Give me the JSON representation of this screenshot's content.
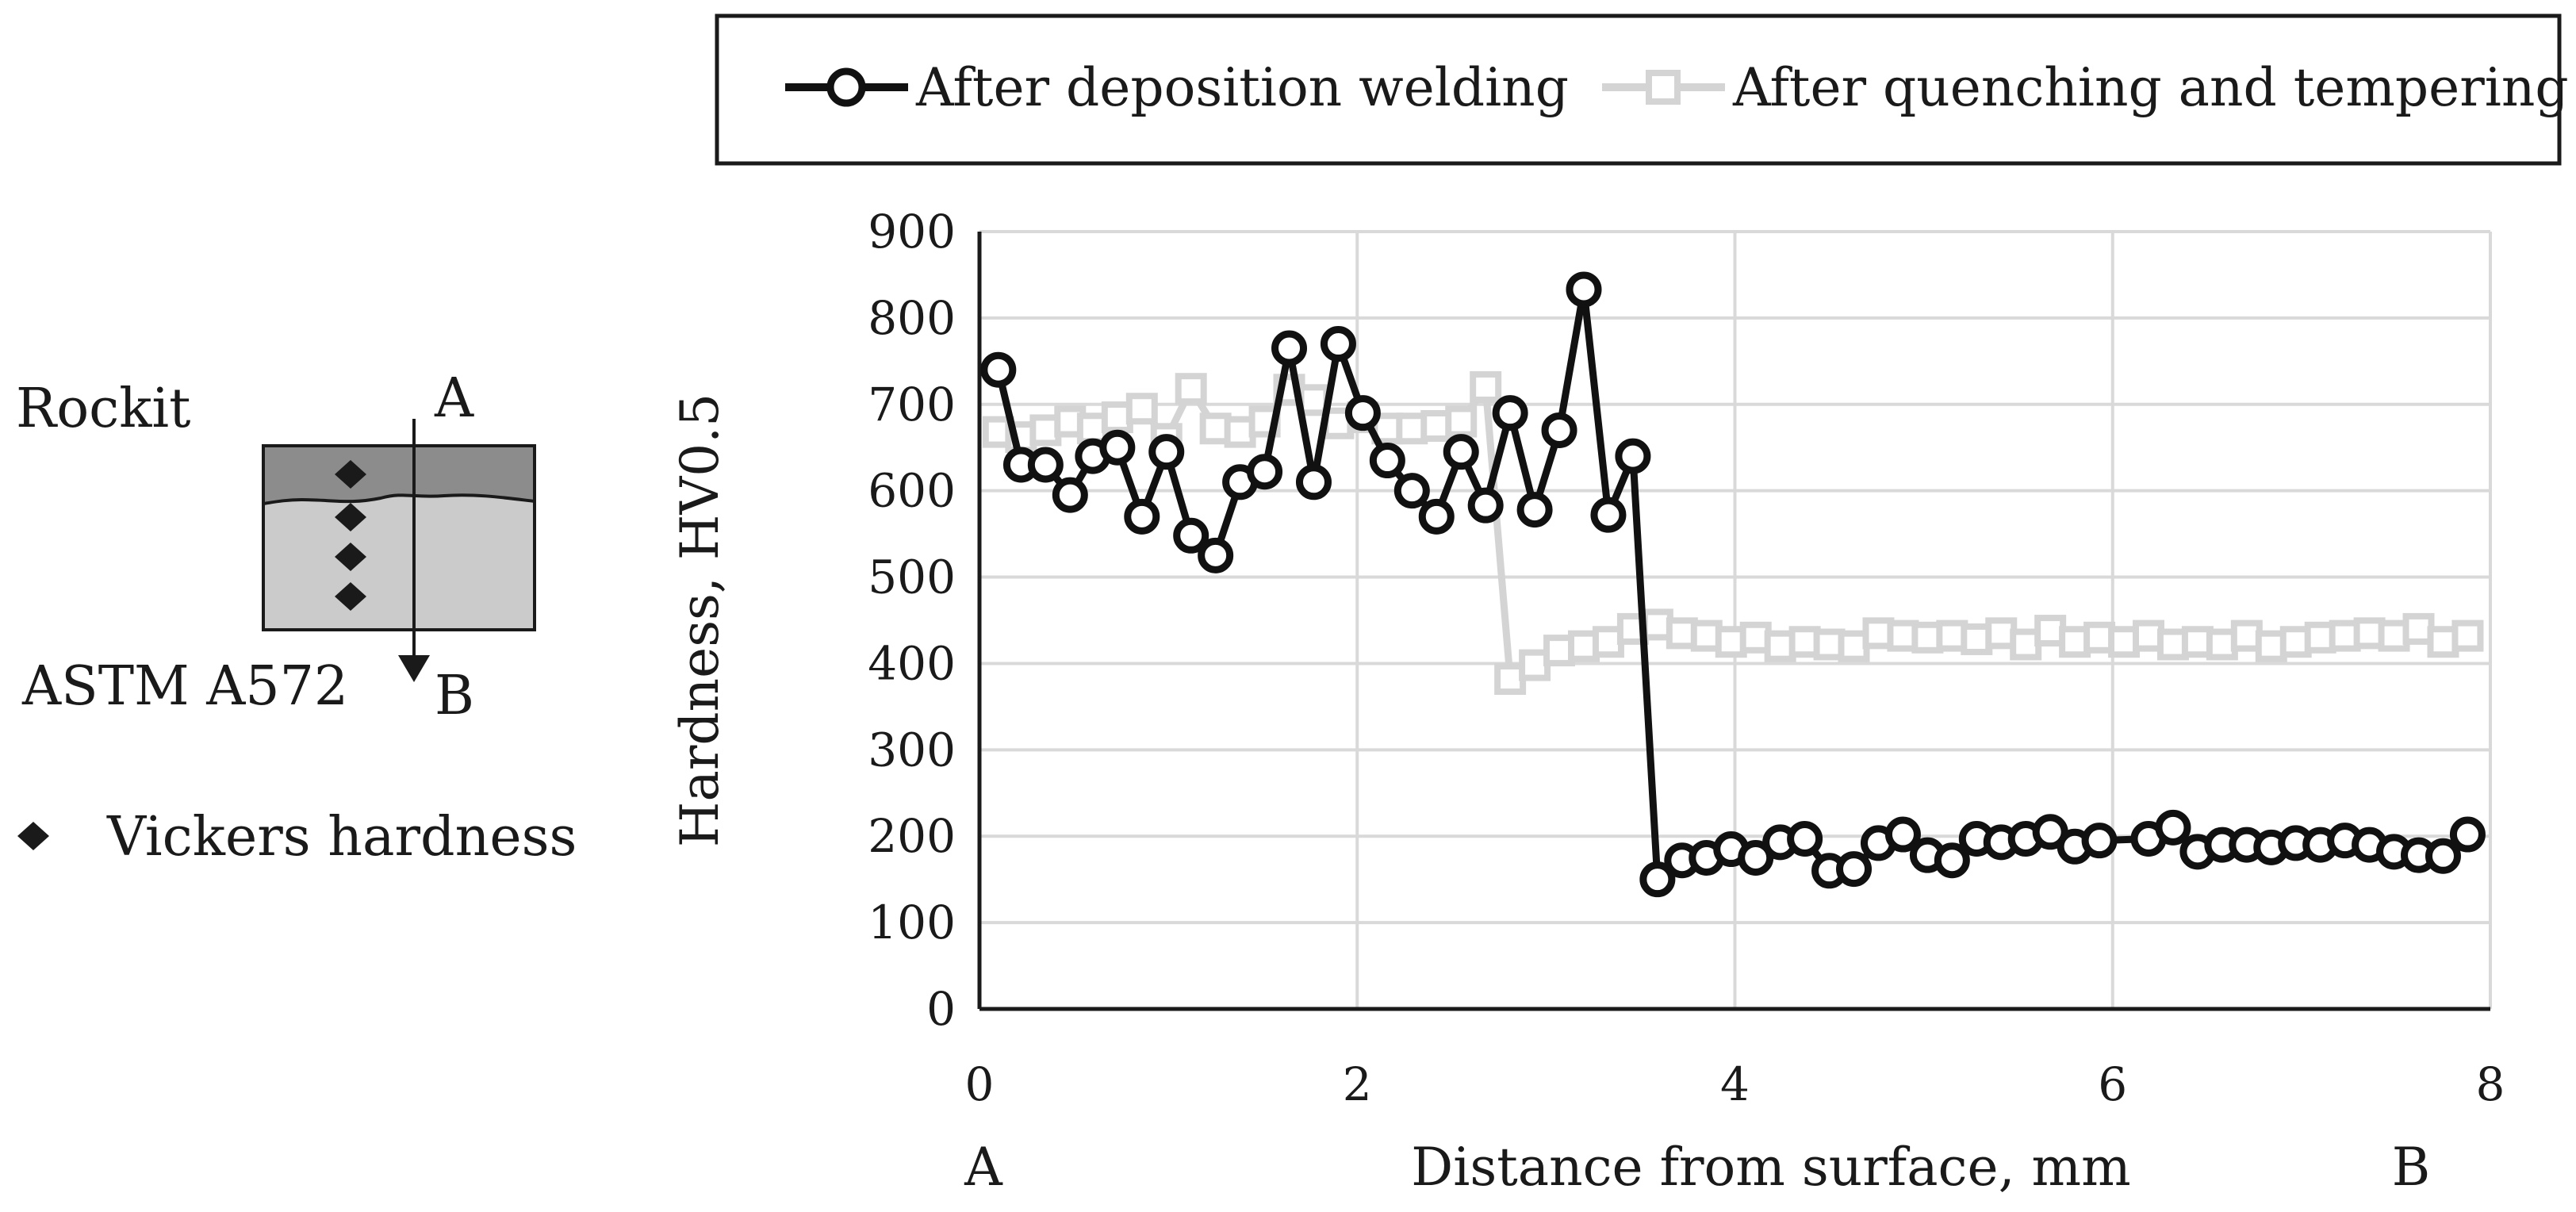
{
  "chart_data": {
    "type": "line",
    "title": "",
    "xlabel": "Distance from surface, mm",
    "ylabel": "Hardness, HV0.5",
    "xlim": [
      0,
      8
    ],
    "ylim": [
      0,
      900
    ],
    "xticks": [
      "0",
      "2",
      "4",
      "6",
      "8"
    ],
    "yticks": [
      "0",
      "100",
      "200",
      "300",
      "400",
      "500",
      "600",
      "700",
      "800",
      "900"
    ],
    "grid": true,
    "legend_position": "top",
    "x_endpoint_labels": {
      "start": "A",
      "end": "B"
    },
    "series": [
      {
        "name": "After deposition welding",
        "color": "#111111",
        "marker": "circle",
        "x": [
          0.1,
          0.22,
          0.35,
          0.48,
          0.6,
          0.73,
          0.86,
          0.99,
          1.12,
          1.25,
          1.38,
          1.51,
          1.64,
          1.77,
          1.9,
          2.03,
          2.16,
          2.29,
          2.42,
          2.55,
          2.68,
          2.81,
          2.94,
          3.07,
          3.2,
          3.33,
          3.46,
          3.59,
          3.72,
          3.85,
          3.98,
          4.11,
          4.24,
          4.37,
          4.5,
          4.63,
          4.76,
          4.89,
          5.02,
          5.15,
          5.28,
          5.41,
          5.54,
          5.67,
          5.8,
          5.93,
          6.06,
          6.19,
          6.32,
          6.45,
          6.58,
          6.71,
          6.84,
          6.97,
          7.1,
          7.23,
          7.36,
          7.49,
          7.62,
          7.75,
          7.88
        ],
        "values": [
          740,
          630,
          630,
          595,
          640,
          650,
          570,
          645,
          548,
          525,
          610,
          622,
          765,
          610,
          770,
          690,
          635,
          600,
          570,
          645,
          583,
          690,
          578,
          670,
          833,
          572,
          640,
          150,
          172,
          175,
          185,
          175,
          193,
          197,
          160,
          162,
          192,
          202,
          178,
          172,
          197,
          193,
          197,
          205,
          188,
          195,
          null,
          197,
          210,
          182,
          190,
          190,
          187,
          192,
          190,
          195,
          190,
          182,
          178,
          177,
          202
        ]
      },
      {
        "name": "After quenching and tempering",
        "color": "#d4d4d4",
        "marker": "square",
        "x": [
          0.1,
          0.22,
          0.35,
          0.48,
          0.6,
          0.73,
          0.86,
          0.99,
          1.12,
          1.25,
          1.38,
          1.51,
          1.64,
          1.77,
          1.9,
          2.03,
          2.16,
          2.29,
          2.42,
          2.55,
          2.68,
          2.81,
          2.94,
          3.07,
          3.2,
          3.33,
          3.46,
          3.59,
          3.72,
          3.85,
          3.98,
          4.11,
          4.24,
          4.37,
          4.5,
          4.63,
          4.76,
          4.89,
          5.02,
          5.15,
          5.28,
          5.41,
          5.54,
          5.67,
          5.8,
          5.93,
          6.06,
          6.19,
          6.32,
          6.45,
          6.58,
          6.71,
          6.84,
          6.97,
          7.1,
          7.23,
          7.36,
          7.49,
          7.62,
          7.75,
          7.88
        ],
        "values": [
          668,
          662,
          670,
          680,
          672,
          685,
          695,
          660,
          718,
          672,
          668,
          680,
          717,
          705,
          678,
          685,
          672,
          672,
          675,
          680,
          720,
          382,
          398,
          415,
          420,
          425,
          440,
          445,
          435,
          432,
          425,
          430,
          420,
          425,
          422,
          420,
          435,
          432,
          430,
          432,
          428,
          435,
          422,
          438,
          425,
          430,
          425,
          432,
          422,
          425,
          422,
          432,
          420,
          425,
          430,
          432,
          435,
          432,
          440,
          425,
          432
        ]
      }
    ]
  },
  "schematic": {
    "top_label": "Rockit",
    "bottom_label": "ASTM A572",
    "start_label": "A",
    "end_label": "B",
    "marker_legend_label": "Vickers hardness",
    "colors": {
      "coating": "#8c8c8c",
      "substrate": "#cbcbcb",
      "marker": "#1a1a1a"
    }
  }
}
